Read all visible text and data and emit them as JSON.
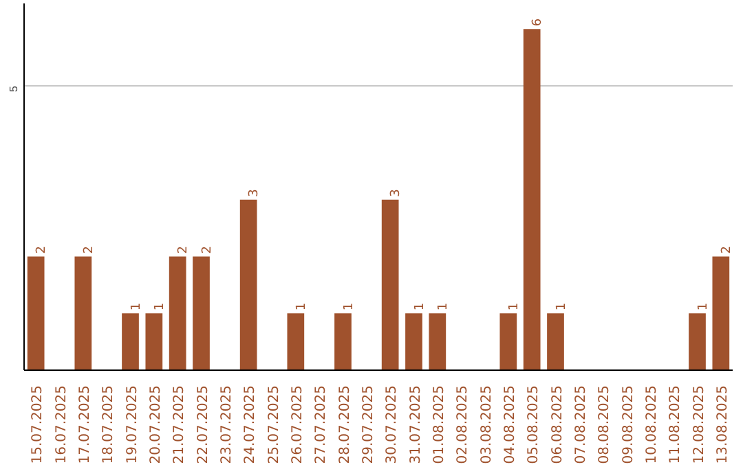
{
  "chart_data": {
    "type": "bar",
    "categories": [
      "15.07.2025",
      "16.07.2025",
      "17.07.2025",
      "18.07.2025",
      "19.07.2025",
      "20.07.2025",
      "21.07.2025",
      "22.07.2025",
      "23.07.2025",
      "24.07.2025",
      "25.07.2025",
      "26.07.2025",
      "27.07.2025",
      "28.07.2025",
      "29.07.2025",
      "30.07.2025",
      "31.07.2025",
      "01.08.2025",
      "02.08.2025",
      "03.08.2025",
      "04.08.2025",
      "05.08.2025",
      "06.08.2025",
      "07.08.2025",
      "08.08.2025",
      "09.08.2025",
      "10.08.2025",
      "11.08.2025",
      "12.08.2025",
      "13.08.2025"
    ],
    "values": [
      2,
      0,
      2,
      0,
      1,
      1,
      2,
      2,
      0,
      3,
      0,
      1,
      0,
      1,
      0,
      3,
      1,
      1,
      0,
      0,
      1,
      6,
      1,
      0,
      0,
      0,
      0,
      0,
      1,
      2
    ],
    "value_labels": [
      "2",
      null,
      "2",
      null,
      "1",
      "1",
      "2",
      "2",
      null,
      "3",
      null,
      "1",
      null,
      "1",
      null,
      "3",
      "1",
      "1",
      null,
      null,
      "1",
      "6",
      "1",
      null,
      null,
      null,
      null,
      null,
      "1",
      "2"
    ],
    "color": "#a0522d",
    "ylim": [
      0,
      6.45
    ],
    "yticks": [
      5
    ],
    "grid": "y"
  }
}
